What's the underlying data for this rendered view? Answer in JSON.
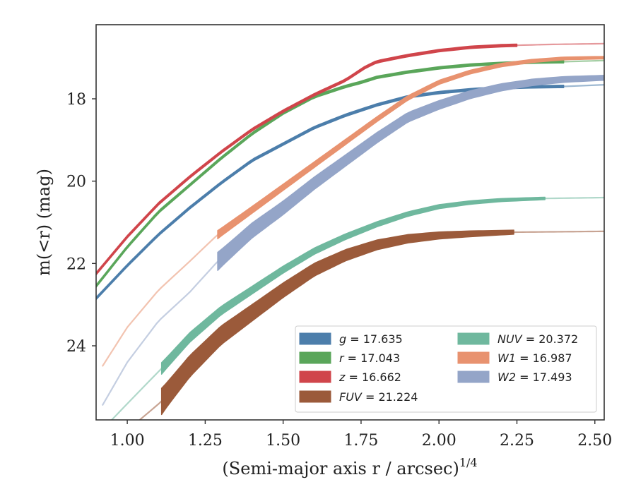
{
  "chart_data": {
    "type": "line",
    "xlabel": "(Semi-major axis r / arcsec)",
    "xlabel_sup": "1/4",
    "ylabel": "m(<r) (mag)",
    "xlim": [
      0.9,
      2.53
    ],
    "ylim": [
      25.8,
      16.2
    ],
    "y_inverted": true,
    "xticks": [
      1.0,
      1.25,
      1.5,
      1.75,
      2.0,
      2.25,
      2.5
    ],
    "xtick_labels": [
      "1.00",
      "1.25",
      "1.50",
      "1.75",
      "2.00",
      "2.25",
      "2.50"
    ],
    "yticks": [
      18,
      20,
      22,
      24
    ],
    "ytick_labels": [
      "18",
      "20",
      "22",
      "24"
    ],
    "grid": false,
    "legend_placement": "lower-right",
    "legend_columns": 2,
    "series": [
      {
        "name": "g = 17.635",
        "var": "g",
        "value": "= 17.635",
        "color": "#4c7eab",
        "x": [
          0.9,
          1.0,
          1.1,
          1.2,
          1.3,
          1.4,
          1.5,
          1.6,
          1.7,
          1.8,
          1.9,
          2.0,
          2.1,
          2.2,
          2.3,
          2.4,
          2.53
        ],
        "y": [
          22.85,
          22.05,
          21.3,
          20.65,
          20.05,
          19.5,
          19.1,
          18.7,
          18.4,
          18.15,
          17.95,
          17.85,
          17.78,
          17.73,
          17.71,
          17.7,
          17.66
        ],
        "solid_range": [
          0.9,
          2.4
        ],
        "halfwidth": 0.03
      },
      {
        "name": "r = 17.043",
        "var": "r",
        "value": "= 17.043",
        "color": "#5aa65a",
        "x": [
          0.9,
          1.0,
          1.1,
          1.2,
          1.3,
          1.4,
          1.5,
          1.6,
          1.7,
          1.75,
          1.8,
          1.9,
          2.0,
          2.1,
          2.2,
          2.3,
          2.4,
          2.53
        ],
        "y": [
          22.55,
          21.6,
          20.75,
          20.1,
          19.45,
          18.85,
          18.35,
          17.95,
          17.7,
          17.6,
          17.48,
          17.35,
          17.25,
          17.18,
          17.14,
          17.11,
          17.1,
          17.07
        ],
        "solid_range": [
          0.9,
          2.4
        ],
        "halfwidth": 0.03
      },
      {
        "name": "z = 16.662",
        "var": "z",
        "value": "= 16.662",
        "color": "#d0454b",
        "x": [
          0.9,
          1.0,
          1.1,
          1.2,
          1.3,
          1.4,
          1.5,
          1.6,
          1.7,
          1.76,
          1.8,
          1.9,
          2.0,
          2.1,
          2.2,
          2.25,
          2.35,
          2.53
        ],
        "y": [
          22.25,
          21.35,
          20.55,
          19.9,
          19.3,
          18.75,
          18.3,
          17.9,
          17.55,
          17.25,
          17.1,
          16.95,
          16.83,
          16.75,
          16.71,
          16.7,
          16.68,
          16.66
        ],
        "solid_range": [
          0.9,
          2.25
        ],
        "halfwidth": 0.03
      },
      {
        "name": "FUV = 21.224",
        "var": "FUV",
        "value": "= 21.224",
        "color": "#9b5a3a",
        "x": [
          1.04,
          1.11,
          1.2,
          1.3,
          1.4,
          1.5,
          1.6,
          1.7,
          1.8,
          1.9,
          2.0,
          2.1,
          2.24,
          2.53
        ],
        "y": [
          25.8,
          25.35,
          24.5,
          23.75,
          23.2,
          22.65,
          22.15,
          21.8,
          21.55,
          21.4,
          21.32,
          21.28,
          21.24,
          21.22
        ],
        "solid_range": [
          1.11,
          2.24
        ],
        "halfwidth_start": 0.32,
        "halfwidth_end": 0.05
      },
      {
        "name": "NUV = 20.372",
        "var": "NUV",
        "value": "= 20.372",
        "color": "#6fb89e",
        "x": [
          0.95,
          1.02,
          1.11,
          1.2,
          1.3,
          1.4,
          1.5,
          1.6,
          1.7,
          1.8,
          1.9,
          2.0,
          2.1,
          2.2,
          2.34,
          2.53
        ],
        "y": [
          25.8,
          25.25,
          24.55,
          23.8,
          23.15,
          22.65,
          22.15,
          21.7,
          21.35,
          21.05,
          20.8,
          20.62,
          20.52,
          20.46,
          20.42,
          20.4
        ],
        "solid_range": [
          1.11,
          2.34
        ],
        "halfwidth_start": 0.14,
        "halfwidth_end": 0.03
      },
      {
        "name": "W1 = 16.987",
        "var": "W1",
        "value": "= 16.987",
        "color": "#e8926f",
        "x": [
          0.92,
          1.0,
          1.1,
          1.2,
          1.29,
          1.4,
          1.5,
          1.6,
          1.7,
          1.8,
          1.9,
          2.0,
          2.1,
          2.2,
          2.3,
          2.4,
          2.53
        ],
        "y": [
          24.5,
          23.55,
          22.65,
          21.95,
          21.3,
          20.7,
          20.15,
          19.6,
          19.05,
          18.5,
          17.98,
          17.6,
          17.35,
          17.18,
          17.08,
          17.02,
          17.0
        ],
        "solid_range": [
          1.29,
          2.53
        ],
        "halfwidth_start": 0.1,
        "halfwidth_end": 0.03
      },
      {
        "name": "W2 = 17.493",
        "var": "W2",
        "value": "= 17.493",
        "color": "#94a5c8",
        "x": [
          0.92,
          1.0,
          1.1,
          1.2,
          1.29,
          1.4,
          1.5,
          1.6,
          1.7,
          1.8,
          1.9,
          2.0,
          2.1,
          2.2,
          2.3,
          2.4,
          2.53
        ],
        "y": [
          25.45,
          24.4,
          23.4,
          22.7,
          21.95,
          21.2,
          20.65,
          20.05,
          19.5,
          18.95,
          18.45,
          18.15,
          17.9,
          17.72,
          17.6,
          17.53,
          17.49
        ],
        "solid_range": [
          1.29,
          2.53
        ],
        "halfwidth_start": 0.22,
        "halfwidth_end": 0.06
      }
    ],
    "legend_order": [
      0,
      4,
      1,
      5,
      2,
      6,
      3
    ]
  }
}
